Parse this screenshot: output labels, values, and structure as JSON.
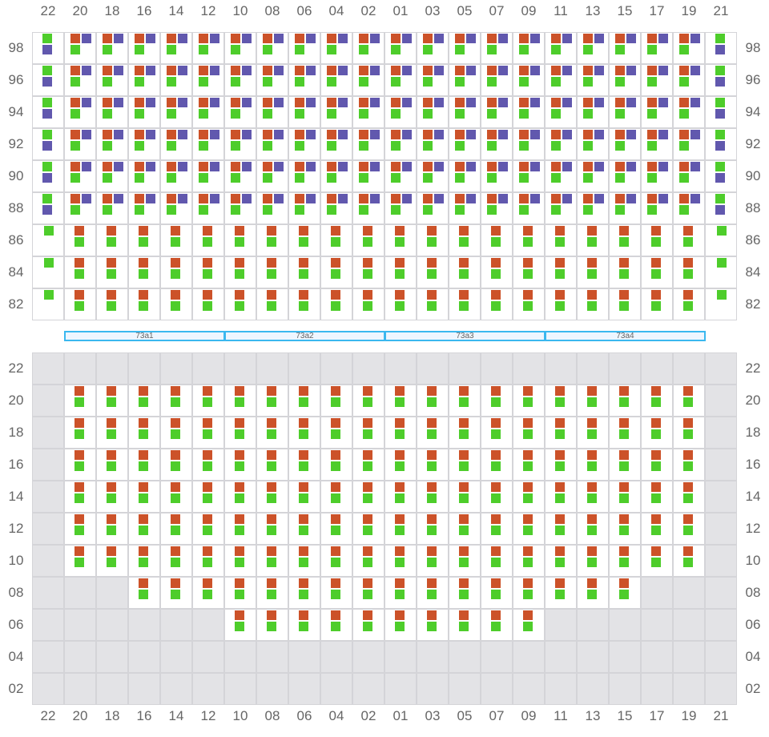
{
  "columns": [
    "22",
    "20",
    "18",
    "16",
    "14",
    "12",
    "10",
    "08",
    "06",
    "04",
    "02",
    "01",
    "03",
    "05",
    "07",
    "09",
    "11",
    "13",
    "15",
    "17",
    "19",
    "21"
  ],
  "colors": {
    "orange": "#cc5229",
    "purple": "#6158ae",
    "green": "#4ecd2b",
    "inactive_cell": "#e3e3e6",
    "band_border": "#3bb8ef"
  },
  "top_section": {
    "rows": [
      {
        "label": "98",
        "type": "full"
      },
      {
        "label": "96",
        "type": "full"
      },
      {
        "label": "94",
        "type": "full"
      },
      {
        "label": "92",
        "type": "full"
      },
      {
        "label": "90",
        "type": "full"
      },
      {
        "label": "88",
        "type": "full"
      },
      {
        "label": "86",
        "type": "partial"
      },
      {
        "label": "84",
        "type": "partial"
      },
      {
        "label": "82",
        "type": "partial"
      }
    ]
  },
  "bands": [
    "73a1",
    "73a2",
    "73a3",
    "73a4"
  ],
  "bottom_section": {
    "rows": [
      {
        "label": "22",
        "active": []
      },
      {
        "label": "20",
        "active": [
          "20",
          "19"
        ]
      },
      {
        "label": "18",
        "active": [
          "20",
          "19"
        ]
      },
      {
        "label": "16",
        "active": [
          "20",
          "19"
        ]
      },
      {
        "label": "14",
        "active": [
          "20",
          "19"
        ]
      },
      {
        "label": "12",
        "active": [
          "20",
          "19"
        ]
      },
      {
        "label": "10",
        "active": [
          "20",
          "19"
        ]
      },
      {
        "label": "08",
        "active": [
          "16",
          "15"
        ]
      },
      {
        "label": "06",
        "active": [
          "10",
          "09"
        ]
      },
      {
        "label": "04",
        "active": []
      },
      {
        "label": "02",
        "active": []
      }
    ]
  }
}
